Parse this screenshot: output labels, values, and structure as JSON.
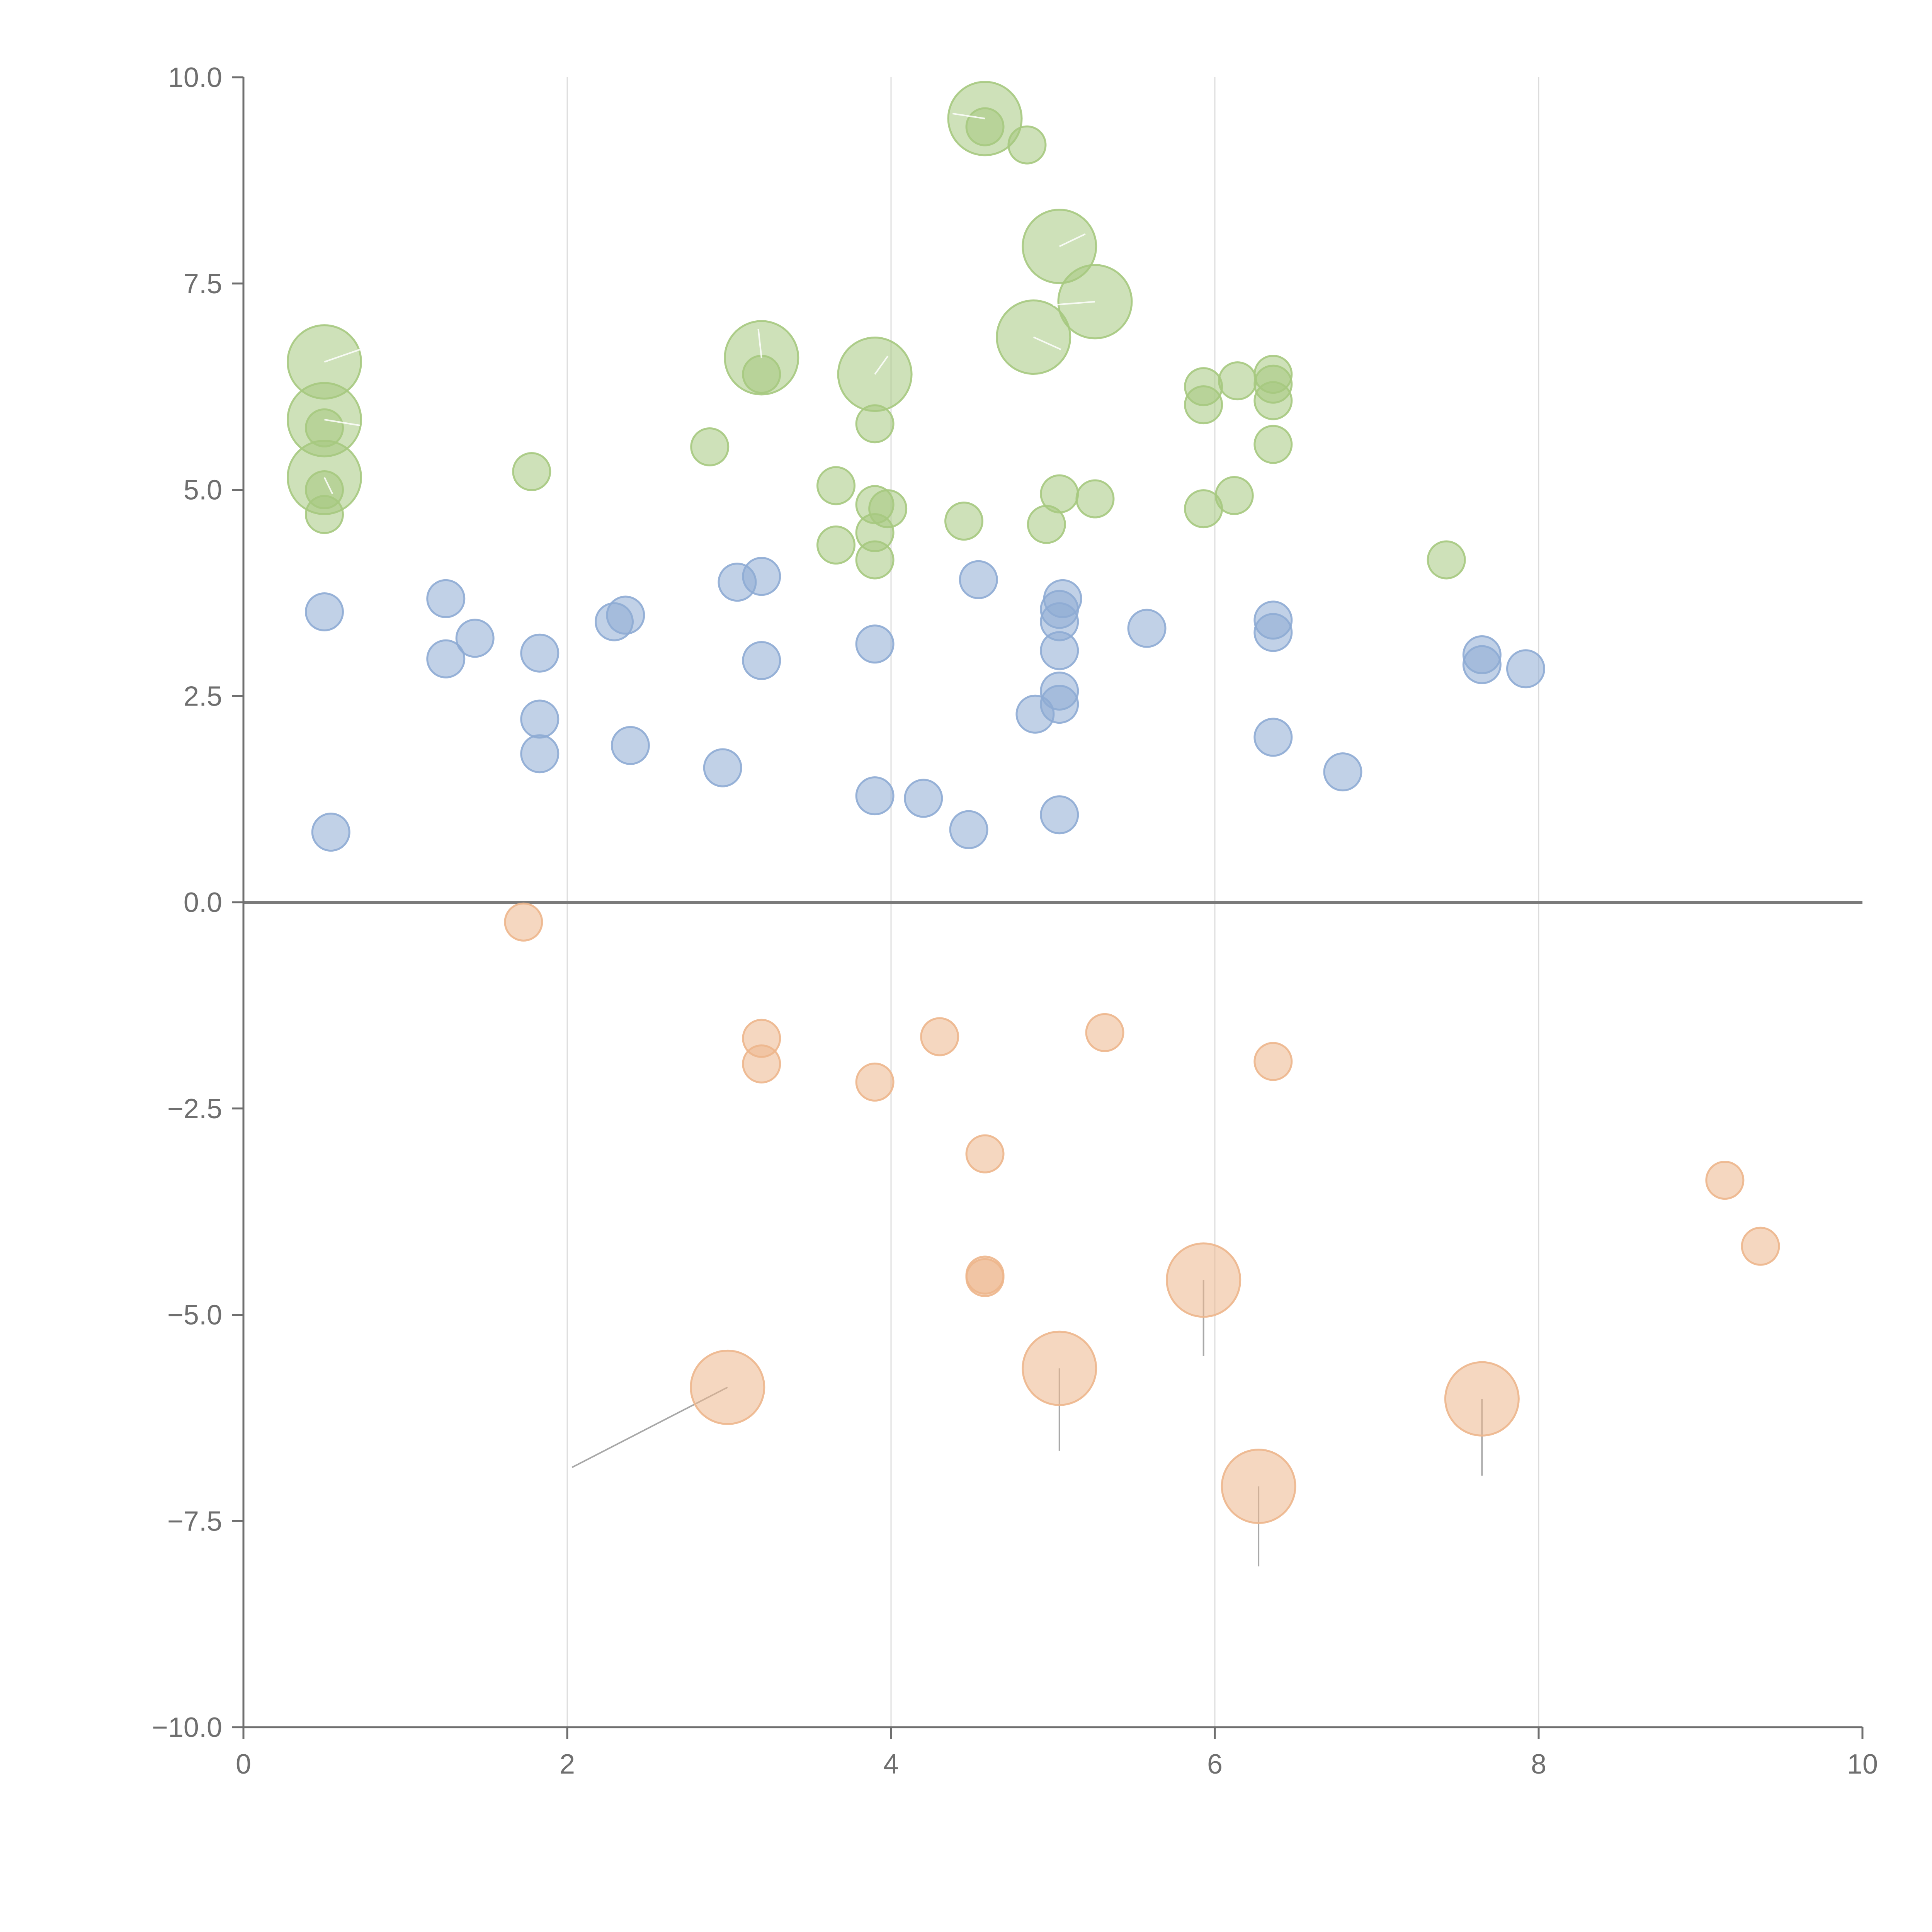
{
  "chart_data": {
    "type": "scatter",
    "title": "",
    "xlabel": "",
    "ylabel": "",
    "xlim": [
      0,
      10
    ],
    "ylim": [
      -10,
      10
    ],
    "grid": "vertical",
    "legend": "none",
    "x_ticks": [
      "0",
      "2",
      "4",
      "6",
      "8",
      "10"
    ],
    "y_ticks": [
      "10.0",
      "7.5",
      "5.0",
      "2.5",
      "0.0",
      "−2.5",
      "−5.0",
      "−7.5",
      "−10.0"
    ],
    "series": [
      {
        "name": "green",
        "color": "#a6c97f",
        "points": [
          [
            0.5,
            6.55,
            2
          ],
          [
            0.5,
            5.85,
            2
          ],
          [
            0.5,
            5.15,
            2
          ],
          [
            0.5,
            5.75,
            1
          ],
          [
            0.5,
            5.0,
            1
          ],
          [
            0.5,
            4.7,
            1
          ],
          [
            1.78,
            5.22,
            1
          ],
          [
            2.88,
            5.52,
            1
          ],
          [
            3.2,
            6.6,
            2
          ],
          [
            3.2,
            6.4,
            1
          ],
          [
            3.9,
            6.4,
            2
          ],
          [
            3.9,
            5.8,
            1
          ],
          [
            3.66,
            5.05,
            1
          ],
          [
            3.9,
            4.82,
            1
          ],
          [
            3.98,
            4.77,
            1
          ],
          [
            3.9,
            4.48,
            1
          ],
          [
            3.66,
            4.33,
            1
          ],
          [
            3.9,
            4.15,
            1
          ],
          [
            4.58,
            9.5,
            2
          ],
          [
            4.58,
            9.4,
            1
          ],
          [
            4.84,
            9.18,
            1
          ],
          [
            5.04,
            7.95,
            2
          ],
          [
            5.26,
            7.28,
            2
          ],
          [
            4.88,
            6.85,
            2
          ],
          [
            4.45,
            4.62,
            1
          ],
          [
            5.04,
            4.95,
            1
          ],
          [
            4.96,
            4.58,
            1
          ],
          [
            5.26,
            4.89,
            1
          ],
          [
            5.93,
            6.25,
            1
          ],
          [
            5.93,
            6.03,
            1
          ],
          [
            6.14,
            6.32,
            1
          ],
          [
            6.36,
            6.4,
            1
          ],
          [
            6.36,
            6.28,
            1
          ],
          [
            6.36,
            6.08,
            1
          ],
          [
            6.36,
            5.55,
            1
          ],
          [
            5.93,
            4.77,
            1
          ],
          [
            6.12,
            4.93,
            1
          ],
          [
            7.43,
            4.15,
            1
          ]
        ]
      },
      {
        "name": "blue",
        "color": "#8eabd4",
        "points": [
          [
            0.5,
            3.52,
            1
          ],
          [
            0.54,
            0.85,
            1
          ],
          [
            1.25,
            3.68,
            1
          ],
          [
            1.25,
            2.95,
            1
          ],
          [
            1.43,
            3.2,
            1
          ],
          [
            1.83,
            3.02,
            1
          ],
          [
            1.83,
            2.22,
            1
          ],
          [
            1.83,
            1.8,
            1
          ],
          [
            2.29,
            3.4,
            1
          ],
          [
            2.36,
            3.48,
            1
          ],
          [
            2.39,
            1.9,
            1
          ],
          [
            2.96,
            1.63,
            1
          ],
          [
            3.05,
            3.88,
            1
          ],
          [
            3.2,
            3.95,
            1
          ],
          [
            3.2,
            2.93,
            1
          ],
          [
            3.9,
            3.13,
            1
          ],
          [
            3.9,
            1.29,
            1
          ],
          [
            4.2,
            1.26,
            1
          ],
          [
            4.48,
            0.88,
            1
          ],
          [
            4.54,
            3.91,
            1
          ],
          [
            5.06,
            3.68,
            1
          ],
          [
            5.04,
            3.55,
            1
          ],
          [
            5.04,
            3.4,
            1
          ],
          [
            5.04,
            3.05,
            1
          ],
          [
            5.04,
            2.56,
            1
          ],
          [
            5.04,
            2.4,
            1
          ],
          [
            4.89,
            2.28,
            1
          ],
          [
            5.04,
            1.06,
            1
          ],
          [
            5.58,
            3.32,
            1
          ],
          [
            6.36,
            3.42,
            1
          ],
          [
            6.36,
            3.27,
            1
          ],
          [
            6.36,
            2.0,
            1
          ],
          [
            6.79,
            1.58,
            1
          ],
          [
            7.65,
            3.0,
            1
          ],
          [
            7.65,
            2.88,
            1
          ],
          [
            7.92,
            2.83,
            1
          ]
        ]
      },
      {
        "name": "orange",
        "color": "#edb68c",
        "points": [
          [
            1.73,
            -0.24,
            1
          ],
          [
            3.2,
            -1.65,
            1
          ],
          [
            3.2,
            -1.96,
            1
          ],
          [
            3.9,
            -2.18,
            1
          ],
          [
            4.3,
            -1.63,
            1
          ],
          [
            5.32,
            -1.58,
            1
          ],
          [
            6.36,
            -1.93,
            1
          ],
          [
            4.58,
            -3.05,
            1
          ],
          [
            4.58,
            -4.52,
            1
          ],
          [
            4.58,
            -4.55,
            1
          ],
          [
            2.99,
            -5.88,
            2
          ],
          [
            5.04,
            -5.65,
            2
          ],
          [
            5.93,
            -4.58,
            2
          ],
          [
            6.27,
            -7.08,
            2
          ],
          [
            7.65,
            -6.02,
            2
          ],
          [
            9.15,
            -3.37,
            1
          ],
          [
            9.37,
            -4.17,
            1
          ]
        ]
      }
    ],
    "leader_lines": [
      [
        [
          2.99,
          -5.88
        ],
        [
          2.03,
          -6.85
        ]
      ],
      [
        [
          5.04,
          -5.65
        ],
        [
          5.04,
          -6.65
        ]
      ],
      [
        [
          5.93,
          -4.58
        ],
        [
          5.93,
          -5.5
        ]
      ],
      [
        [
          6.27,
          -7.08
        ],
        [
          6.27,
          -8.05
        ]
      ],
      [
        [
          7.65,
          -6.02
        ],
        [
          7.65,
          -6.95
        ]
      ]
    ],
    "inner_marks": [
      [
        [
          0.5,
          6.55
        ],
        [
          0.72,
          6.7
        ]
      ],
      [
        [
          0.5,
          5.85
        ],
        [
          0.72,
          5.78
        ]
      ],
      [
        [
          0.5,
          5.15
        ],
        [
          0.55,
          4.95
        ]
      ],
      [
        [
          3.2,
          6.6
        ],
        [
          3.18,
          6.95
        ]
      ],
      [
        [
          3.9,
          6.4
        ],
        [
          3.98,
          6.62
        ]
      ],
      [
        [
          4.58,
          9.5
        ],
        [
          4.38,
          9.56
        ]
      ],
      [
        [
          5.04,
          7.95
        ],
        [
          5.2,
          8.1
        ]
      ],
      [
        [
          5.26,
          7.28
        ],
        [
          5.0,
          7.24
        ]
      ],
      [
        [
          4.88,
          6.85
        ],
        [
          5.05,
          6.7
        ]
      ]
    ]
  }
}
